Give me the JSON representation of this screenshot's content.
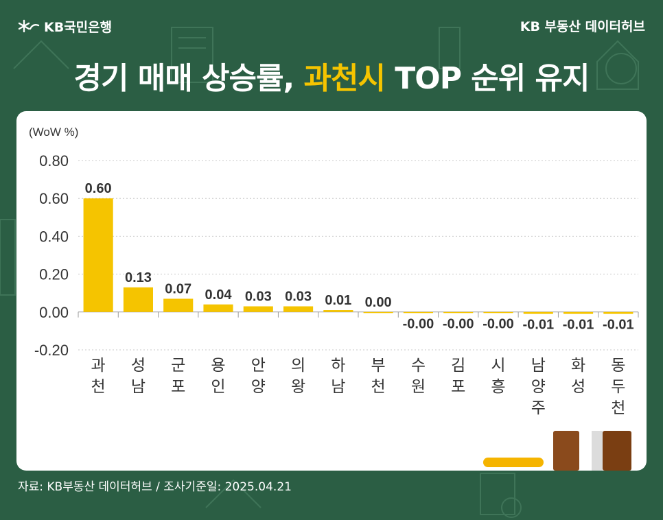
{
  "header": {
    "logo_text": "KB국민은행",
    "brand_right": "KB 부동산 데이터허브",
    "title_part1": "경기 매매 상승률, ",
    "title_highlight": "과천시",
    "title_part2": " TOP 순위 유지",
    "highlight_color": "#f5c400"
  },
  "footer": {
    "source_text": "자료: KB부동산 데이터허브 / 조사기준일: 2025.04.21"
  },
  "chart_data": {
    "type": "bar",
    "unit_label": "(WoW %)",
    "categories": [
      "과천",
      "성남",
      "군포",
      "용인",
      "안양",
      "의왕",
      "하남",
      "부천",
      "수원",
      "김포",
      "시흥",
      "남양주",
      "화성",
      "동두천"
    ],
    "values": [
      0.6,
      0.13,
      0.07,
      0.04,
      0.03,
      0.03,
      0.01,
      0.0,
      -0.001,
      -0.001,
      -0.001,
      -0.01,
      -0.01,
      -0.01
    ],
    "value_labels": [
      "0.60",
      "0.13",
      "0.07",
      "0.04",
      "0.03",
      "0.03",
      "0.01",
      "0.00",
      "-0.00",
      "-0.00",
      "-0.00",
      "-0.01",
      "-0.01",
      "-0.01"
    ],
    "ylim": [
      -0.2,
      0.8
    ],
    "yticks": [
      "0.80",
      "0.60",
      "0.40",
      "0.20",
      "0.00",
      "-0.20"
    ],
    "ytick_values": [
      0.8,
      0.6,
      0.4,
      0.2,
      0.0,
      -0.2
    ],
    "grid": true,
    "bar_color": "#f5c400"
  }
}
